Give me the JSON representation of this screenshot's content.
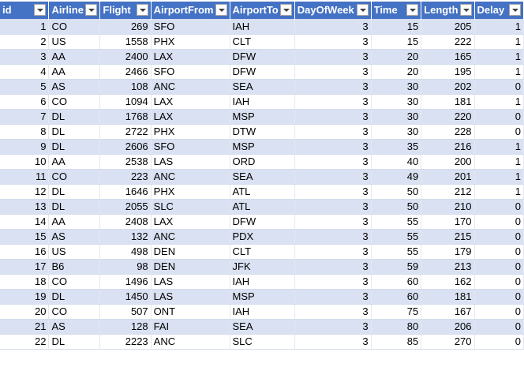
{
  "table": {
    "columns": [
      {
        "key": "id",
        "label": "id",
        "align": "num"
      },
      {
        "key": "airline",
        "label": "Airline",
        "align": "txt"
      },
      {
        "key": "flight",
        "label": "Flight",
        "align": "num"
      },
      {
        "key": "airport_from",
        "label": "AirportFrom",
        "align": "txt"
      },
      {
        "key": "airport_to",
        "label": "AirportTo",
        "align": "txt"
      },
      {
        "key": "day_of_week",
        "label": "DayOfWeek",
        "align": "num"
      },
      {
        "key": "time",
        "label": "Time",
        "align": "num"
      },
      {
        "key": "length",
        "label": "Length",
        "align": "num"
      },
      {
        "key": "delay",
        "label": "Delay",
        "align": "num"
      }
    ],
    "rows": [
      [
        "1",
        "CO",
        "269",
        "SFO",
        "IAH",
        "3",
        "15",
        "205",
        "1"
      ],
      [
        "2",
        "US",
        "1558",
        "PHX",
        "CLT",
        "3",
        "15",
        "222",
        "1"
      ],
      [
        "3",
        "AA",
        "2400",
        "LAX",
        "DFW",
        "3",
        "20",
        "165",
        "1"
      ],
      [
        "4",
        "AA",
        "2466",
        "SFO",
        "DFW",
        "3",
        "20",
        "195",
        "1"
      ],
      [
        "5",
        "AS",
        "108",
        "ANC",
        "SEA",
        "3",
        "30",
        "202",
        "0"
      ],
      [
        "6",
        "CO",
        "1094",
        "LAX",
        "IAH",
        "3",
        "30",
        "181",
        "1"
      ],
      [
        "7",
        "DL",
        "1768",
        "LAX",
        "MSP",
        "3",
        "30",
        "220",
        "0"
      ],
      [
        "8",
        "DL",
        "2722",
        "PHX",
        "DTW",
        "3",
        "30",
        "228",
        "0"
      ],
      [
        "9",
        "DL",
        "2606",
        "SFO",
        "MSP",
        "3",
        "35",
        "216",
        "1"
      ],
      [
        "10",
        "AA",
        "2538",
        "LAS",
        "ORD",
        "3",
        "40",
        "200",
        "1"
      ],
      [
        "11",
        "CO",
        "223",
        "ANC",
        "SEA",
        "3",
        "49",
        "201",
        "1"
      ],
      [
        "12",
        "DL",
        "1646",
        "PHX",
        "ATL",
        "3",
        "50",
        "212",
        "1"
      ],
      [
        "13",
        "DL",
        "2055",
        "SLC",
        "ATL",
        "3",
        "50",
        "210",
        "0"
      ],
      [
        "14",
        "AA",
        "2408",
        "LAX",
        "DFW",
        "3",
        "55",
        "170",
        "0"
      ],
      [
        "15",
        "AS",
        "132",
        "ANC",
        "PDX",
        "3",
        "55",
        "215",
        "0"
      ],
      [
        "16",
        "US",
        "498",
        "DEN",
        "CLT",
        "3",
        "55",
        "179",
        "0"
      ],
      [
        "17",
        "B6",
        "98",
        "DEN",
        "JFK",
        "3",
        "59",
        "213",
        "0"
      ],
      [
        "18",
        "CO",
        "1496",
        "LAS",
        "IAH",
        "3",
        "60",
        "162",
        "0"
      ],
      [
        "19",
        "DL",
        "1450",
        "LAS",
        "MSP",
        "3",
        "60",
        "181",
        "0"
      ],
      [
        "20",
        "CO",
        "507",
        "ONT",
        "IAH",
        "3",
        "75",
        "167",
        "0"
      ],
      [
        "21",
        "AS",
        "128",
        "FAI",
        "SEA",
        "3",
        "80",
        "206",
        "0"
      ],
      [
        "22",
        "DL",
        "2223",
        "ANC",
        "SLC",
        "3",
        "85",
        "270",
        "0"
      ]
    ]
  },
  "colors": {
    "header_bg": "#4472c4",
    "header_text": "#ffffff",
    "band_row": "#d9e1f2",
    "plain_row": "#ffffff"
  }
}
